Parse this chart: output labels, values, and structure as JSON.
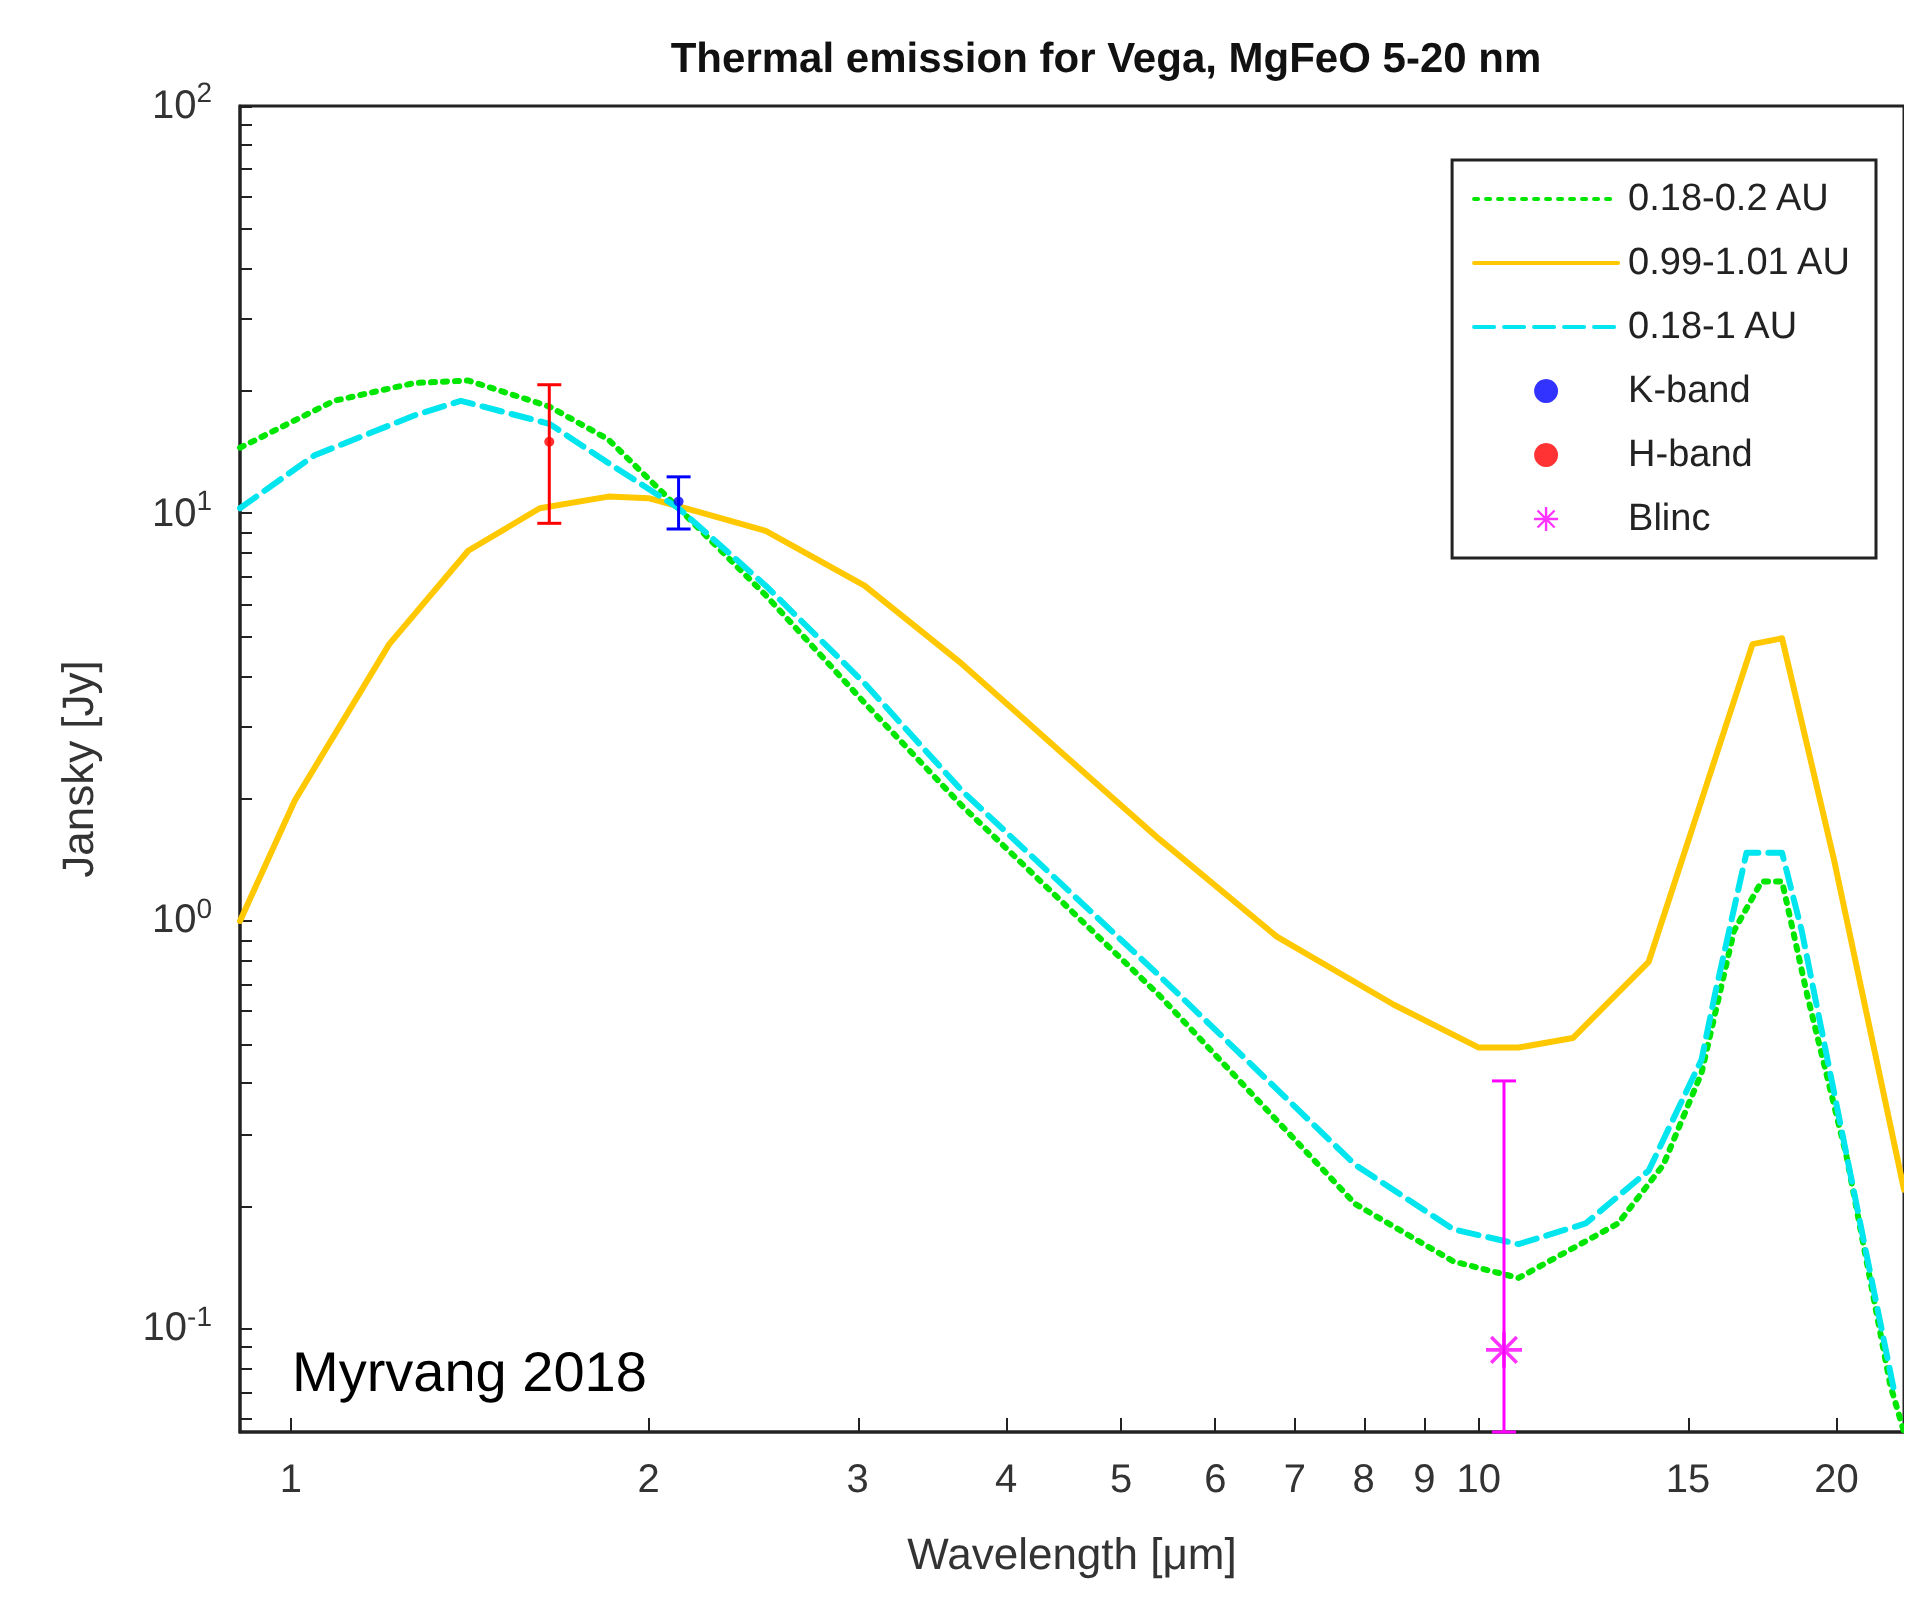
{
  "chart_data": {
    "type": "line",
    "title": "Thermal emission for Vega, MgFeO 5-20 nm",
    "xlabel": "Wavelength [μm]",
    "ylabel": "Jansky [Jy]",
    "log": "xy",
    "xlim": [
      0.906,
      22.8
    ],
    "ylim": [
      0.0557,
      100
    ],
    "xticks": [
      1,
      2,
      3,
      4,
      5,
      6,
      7,
      8,
      9,
      10,
      15,
      20
    ],
    "yticks": [
      {
        "value": 0.1,
        "label": "10$^{-1}$"
      },
      {
        "value": 1,
        "label": "10$^{0}$"
      },
      {
        "value": 10,
        "label": "10$^{1}$"
      },
      {
        "value": 100,
        "label": "10$^{2}$"
      },
      {
        "value": 0.06,
        "label": null
      },
      {
        "value": 0.07,
        "label": null
      },
      {
        "value": 0.08,
        "label": null
      },
      {
        "value": 0.09,
        "label": null
      },
      {
        "value": 0.2,
        "label": null
      },
      {
        "value": 0.3,
        "label": null
      },
      {
        "value": 0.4,
        "label": null
      },
      {
        "value": 0.5,
        "label": null
      },
      {
        "value": 0.6,
        "label": null
      },
      {
        "value": 0.7,
        "label": null
      },
      {
        "value": 0.8,
        "label": null
      },
      {
        "value": 0.9,
        "label": null
      },
      {
        "value": 2,
        "label": null
      },
      {
        "value": 3,
        "label": null
      },
      {
        "value": 4,
        "label": null
      },
      {
        "value": 5,
        "label": null
      },
      {
        "value": 6,
        "label": null
      },
      {
        "value": 7,
        "label": null
      },
      {
        "value": 8,
        "label": null
      },
      {
        "value": 9,
        "label": null
      },
      {
        "value": 20,
        "label": null
      },
      {
        "value": 30,
        "label": null
      },
      {
        "value": 40,
        "label": null
      },
      {
        "value": 50,
        "label": null
      },
      {
        "value": 60,
        "label": null
      },
      {
        "value": 70,
        "label": null
      },
      {
        "value": 80,
        "label": null
      },
      {
        "value": 90,
        "label": null
      }
    ],
    "legend": "top right",
    "annotations": [
      "Myrvang 2018"
    ],
    "series": [
      {
        "name": "0.18-0.2 AU",
        "color": "#00e600",
        "type": "line",
        "line_style": "dotted",
        "marker": "none",
        "x": [
          0.906,
          1.087,
          1.27,
          1.41,
          1.65,
          1.85,
          2.12,
          2.51,
          3.04,
          3.67,
          5.38,
          7.87,
          9.52,
          10.8,
          13.1,
          14.3,
          15.4,
          16.4,
          17.3,
          18.0,
          18.9,
          20.4,
          22.2,
          22.8
        ],
        "values": [
          14.5,
          18.9,
          20.9,
          21.2,
          18.3,
          15.2,
          10.3,
          6.3,
          3.43,
          1.92,
          0.658,
          0.202,
          0.146,
          0.133,
          0.181,
          0.252,
          0.424,
          0.946,
          1.25,
          1.25,
          0.658,
          0.264,
          0.0727,
          0.0557
        ]
      },
      {
        "name": "0.99-1.01 AU",
        "color": "#ffc800",
        "type": "line",
        "line_style": "solid",
        "marker": "none",
        "x": [
          0.906,
          1.008,
          1.21,
          1.41,
          1.62,
          1.85,
          2.0,
          2.2,
          2.51,
          3.04,
          3.67,
          4.44,
          5.38,
          6.76,
          8.49,
          10,
          10.8,
          12.0,
          13.9,
          15.4,
          17.0,
          18.0,
          19.9,
          22.8
        ],
        "values": [
          1.0,
          1.98,
          4.78,
          8.1,
          10.3,
          11.0,
          10.9,
          10.1,
          9.06,
          6.65,
          4.28,
          2.61,
          1.59,
          0.915,
          0.622,
          0.489,
          0.489,
          0.516,
          0.794,
          1.98,
          4.78,
          4.94,
          1.42,
          0.219
        ]
      },
      {
        "name": "0.18-1 AU",
        "color": "#00e5ee",
        "type": "line",
        "line_style": "dashed",
        "marker": "none",
        "x": [
          0.906,
          1.047,
          1.27,
          1.39,
          1.65,
          1.85,
          2.12,
          2.51,
          3.04,
          3.67,
          5.38,
          7.87,
          9.52,
          10.8,
          12.3,
          13.9,
          15.4,
          15.8,
          16.8,
          18.0,
          18.7,
          21.2,
          22.4
        ],
        "values": [
          10.3,
          13.9,
          17.4,
          18.9,
          16.6,
          13.3,
          10.3,
          6.65,
          3.83,
          2.09,
          0.735,
          0.252,
          0.175,
          0.161,
          0.181,
          0.244,
          0.457,
          0.658,
          1.47,
          1.47,
          0.946,
          0.152,
          0.0688
        ]
      },
      {
        "name": "K-band",
        "color": "#0000ff",
        "type": "scatter",
        "marker": "circle",
        "x": [
          2.12
        ],
        "values": [
          10.7
        ],
        "errors": [
          [
            9.16,
            12.3
          ]
        ]
      },
      {
        "name": "H-band",
        "color": "#ff0000",
        "type": "scatter",
        "marker": "circle",
        "x": [
          1.65
        ],
        "values": [
          15.0
        ],
        "errors": [
          [
            9.46,
            20.7
          ]
        ]
      },
      {
        "name": "Blinc",
        "color": "#ff00ff",
        "type": "scatter",
        "marker": "star",
        "x": [
          10.5
        ],
        "values": [
          0.0886
        ],
        "errors": [
          [
            0.0557,
            0.405
          ]
        ]
      }
    ]
  }
}
